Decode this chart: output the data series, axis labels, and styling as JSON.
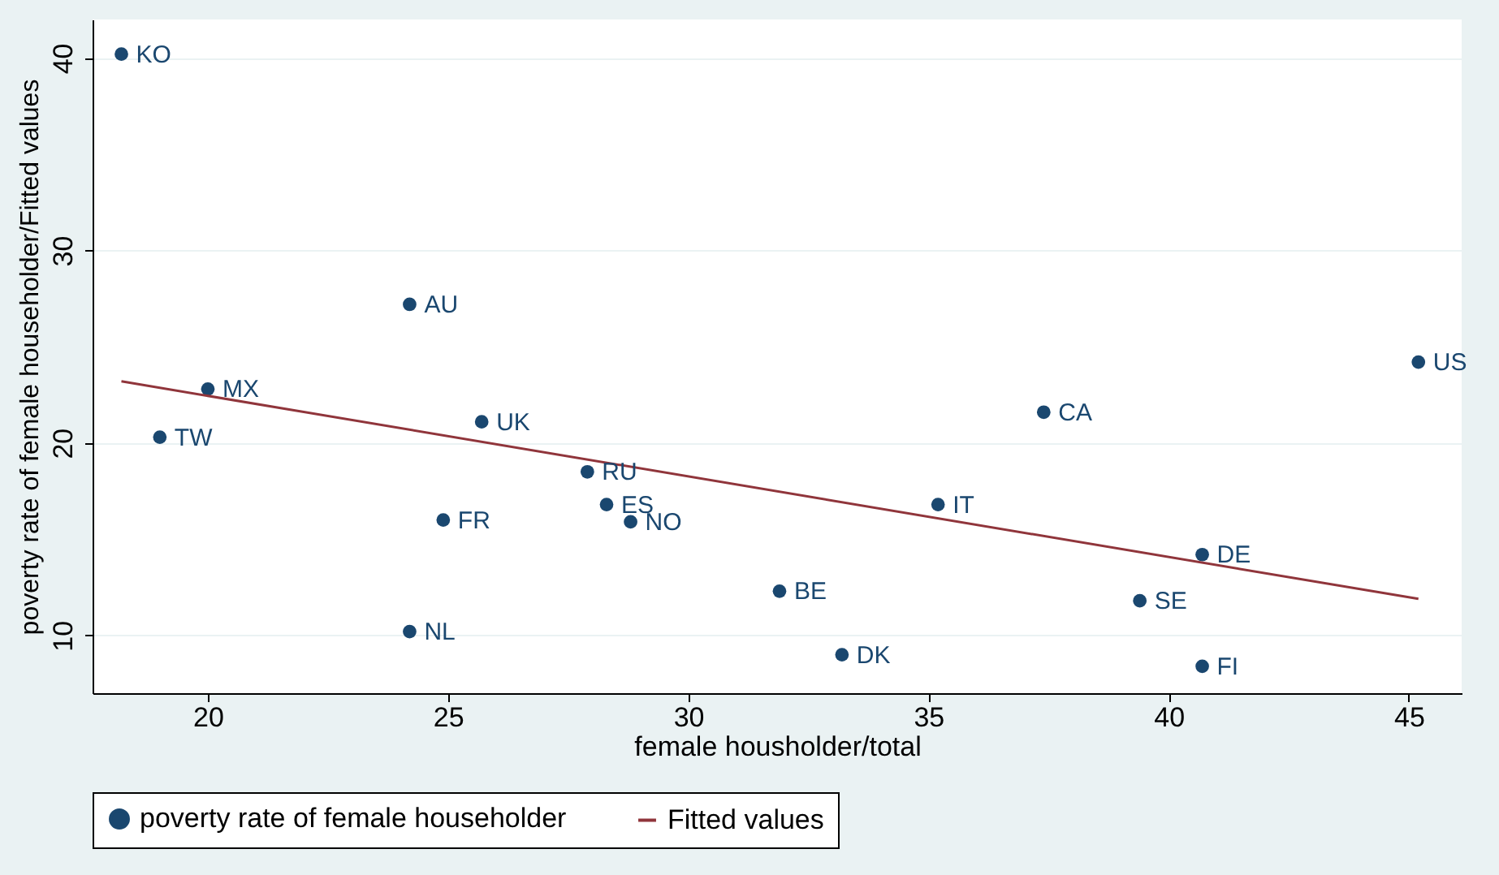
{
  "chart_data": {
    "type": "scatter",
    "xlabel": "female housholder/total",
    "ylabel": "poverty rate of female householder/Fitted values",
    "xlim": [
      17.6,
      46.1
    ],
    "xticks": [
      20,
      25,
      30,
      35,
      40,
      45
    ],
    "ylim": [
      7,
      42
    ],
    "yticks": [
      10,
      20,
      30,
      40
    ],
    "grid": "y",
    "legend": "bottom",
    "series": [
      {
        "name": "poverty rate of female householder",
        "marker": "circle",
        "color": "#1a476f",
        "x": [
          18.2,
          24.2,
          20,
          19,
          25.7,
          27.9,
          28.3,
          24.9,
          28.8,
          31.9,
          24.2,
          33.2,
          35.2,
          37.4,
          40.7,
          39.4,
          40.7,
          45.2
        ],
        "values": [
          40.2,
          27.2,
          22.8,
          20.3,
          21.1,
          18.5,
          16.8,
          16,
          15.9,
          12.3,
          10.2,
          9,
          16.8,
          21.6,
          14.2,
          11.8,
          8.4,
          24.2
        ]
      },
      {
        "name": "Fitted values",
        "type": "line",
        "marker": "none",
        "color": "#90353b",
        "x": [
          18.2,
          45.2
        ],
        "values": [
          23.2,
          11.9
        ]
      }
    ],
    "annotations": [
      {
        "text": "KO",
        "x": 18.2,
        "y": 40.2
      },
      {
        "text": "AU",
        "x": 24.2,
        "y": 27.2
      },
      {
        "text": "MX",
        "x": 20,
        "y": 22.8
      },
      {
        "text": "TW",
        "x": 19,
        "y": 20.3
      },
      {
        "text": "UK",
        "x": 25.7,
        "y": 21.1
      },
      {
        "text": "RU",
        "x": 27.9,
        "y": 18.5
      },
      {
        "text": "ES",
        "x": 28.3,
        "y": 16.8
      },
      {
        "text": "FR",
        "x": 24.9,
        "y": 16
      },
      {
        "text": "NO",
        "x": 28.8,
        "y": 15.9
      },
      {
        "text": "BE",
        "x": 31.9,
        "y": 12.3
      },
      {
        "text": "NL",
        "x": 24.2,
        "y": 10.2
      },
      {
        "text": "DK",
        "x": 33.2,
        "y": 9
      },
      {
        "text": "IT",
        "x": 35.2,
        "y": 16.8
      },
      {
        "text": "CA",
        "x": 37.4,
        "y": 21.6
      },
      {
        "text": "DE",
        "x": 40.7,
        "y": 14.2
      },
      {
        "text": "SE",
        "x": 39.4,
        "y": 11.8
      },
      {
        "text": "FI",
        "x": 40.7,
        "y": 8.4
      },
      {
        "text": "US",
        "x": 45.2,
        "y": 24.2
      }
    ]
  }
}
